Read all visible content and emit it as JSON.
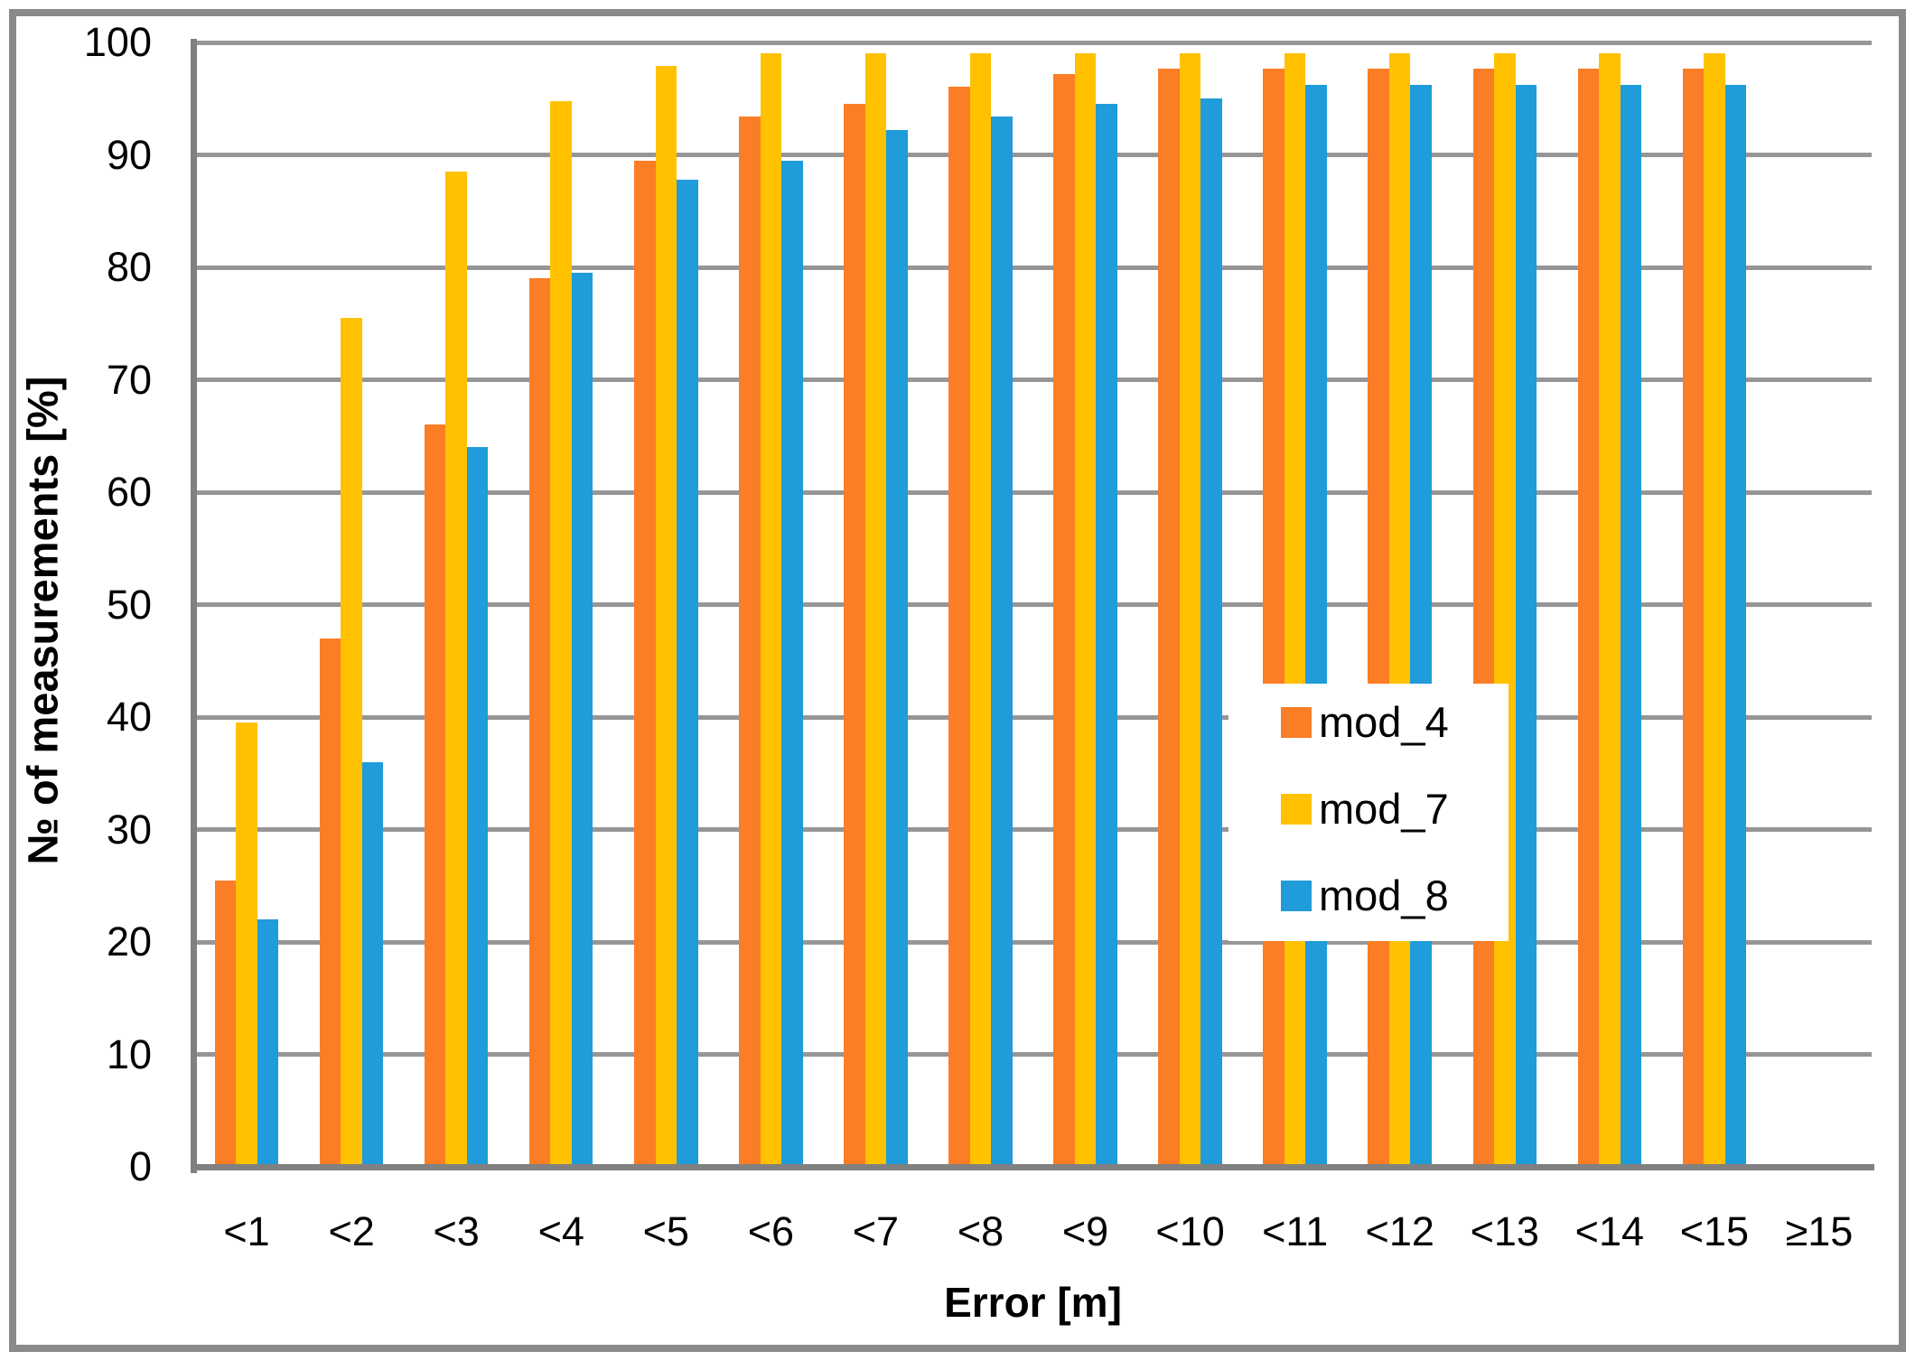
{
  "chart_data": {
    "type": "bar",
    "title": "",
    "xlabel": "Error [m]",
    "ylabel": "№ of measurements [%]",
    "ylim": [
      0,
      100
    ],
    "ytick_step": 10,
    "yticks": [
      "0",
      "10",
      "20",
      "30",
      "40",
      "50",
      "60",
      "70",
      "80",
      "90",
      "100"
    ],
    "grid": true,
    "categories": [
      "<1",
      "<2",
      "<3",
      "<4",
      "<5",
      "<6",
      "<7",
      "<8",
      "<9",
      "<10",
      "<11",
      "<12",
      "<13",
      "<14",
      "<15",
      "≥15"
    ],
    "series": [
      {
        "name": "mod_4",
        "color": "#FB7D26",
        "values": [
          25.5,
          47,
          66,
          79,
          89.5,
          93.4,
          94.5,
          96.1,
          97.2,
          97.7,
          97.7,
          97.7,
          97.7,
          97.7,
          97.7,
          0
        ]
      },
      {
        "name": "mod_7",
        "color": "#FFC100",
        "values": [
          39.5,
          75.5,
          88.5,
          94.8,
          97.9,
          99,
          99,
          99,
          99,
          99,
          99,
          99,
          99,
          99,
          99,
          0
        ]
      },
      {
        "name": "mod_8",
        "color": "#1F9CD9",
        "values": [
          22,
          36,
          64,
          79.5,
          87.8,
          89.5,
          92.2,
          93.4,
          94.5,
          95,
          96.2,
          96.2,
          96.2,
          96.2,
          96.2,
          0
        ]
      }
    ],
    "legend": {
      "position": "middle-right",
      "entries": [
        "mod_4",
        "mod_7",
        "mod_8"
      ]
    },
    "colors": {
      "gridline": "#969696",
      "axis": "#808080",
      "frame": "#8A8A8A",
      "background": "#FFFFFF",
      "text": "#000000"
    }
  }
}
